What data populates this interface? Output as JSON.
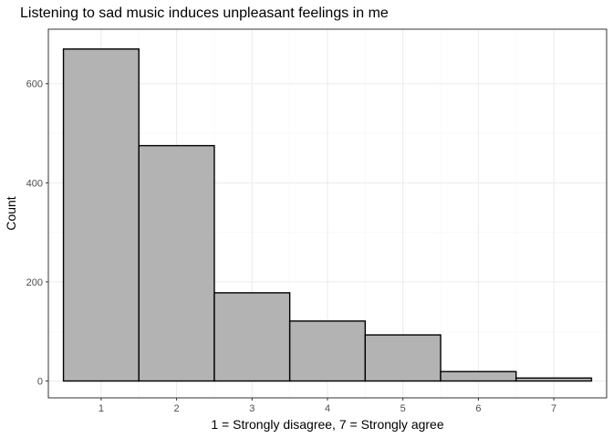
{
  "chart_data": {
    "type": "bar",
    "title": "Listening to sad music induces unpleasant feelings in me",
    "xlabel": "1 = Strongly disagree, 7 = Strongly agree",
    "ylabel": "Count",
    "categories": [
      "1",
      "2",
      "3",
      "4",
      "5",
      "6",
      "7"
    ],
    "values": [
      670,
      475,
      178,
      121,
      93,
      19,
      6
    ],
    "xlim": [
      0.3,
      7.7
    ],
    "ylim": [
      -34,
      710
    ],
    "yticks": [
      0,
      200,
      400,
      600
    ],
    "xticks": [
      1,
      2,
      3,
      4,
      5,
      6,
      7
    ],
    "grid": true,
    "theme": "bw",
    "colors": {
      "bar_fill": "#b3b3b3",
      "bar_stroke": "#000000",
      "grid_major": "#ebebeb",
      "grid_minor": "#f5f5f5",
      "panel_border": "#333333"
    }
  }
}
